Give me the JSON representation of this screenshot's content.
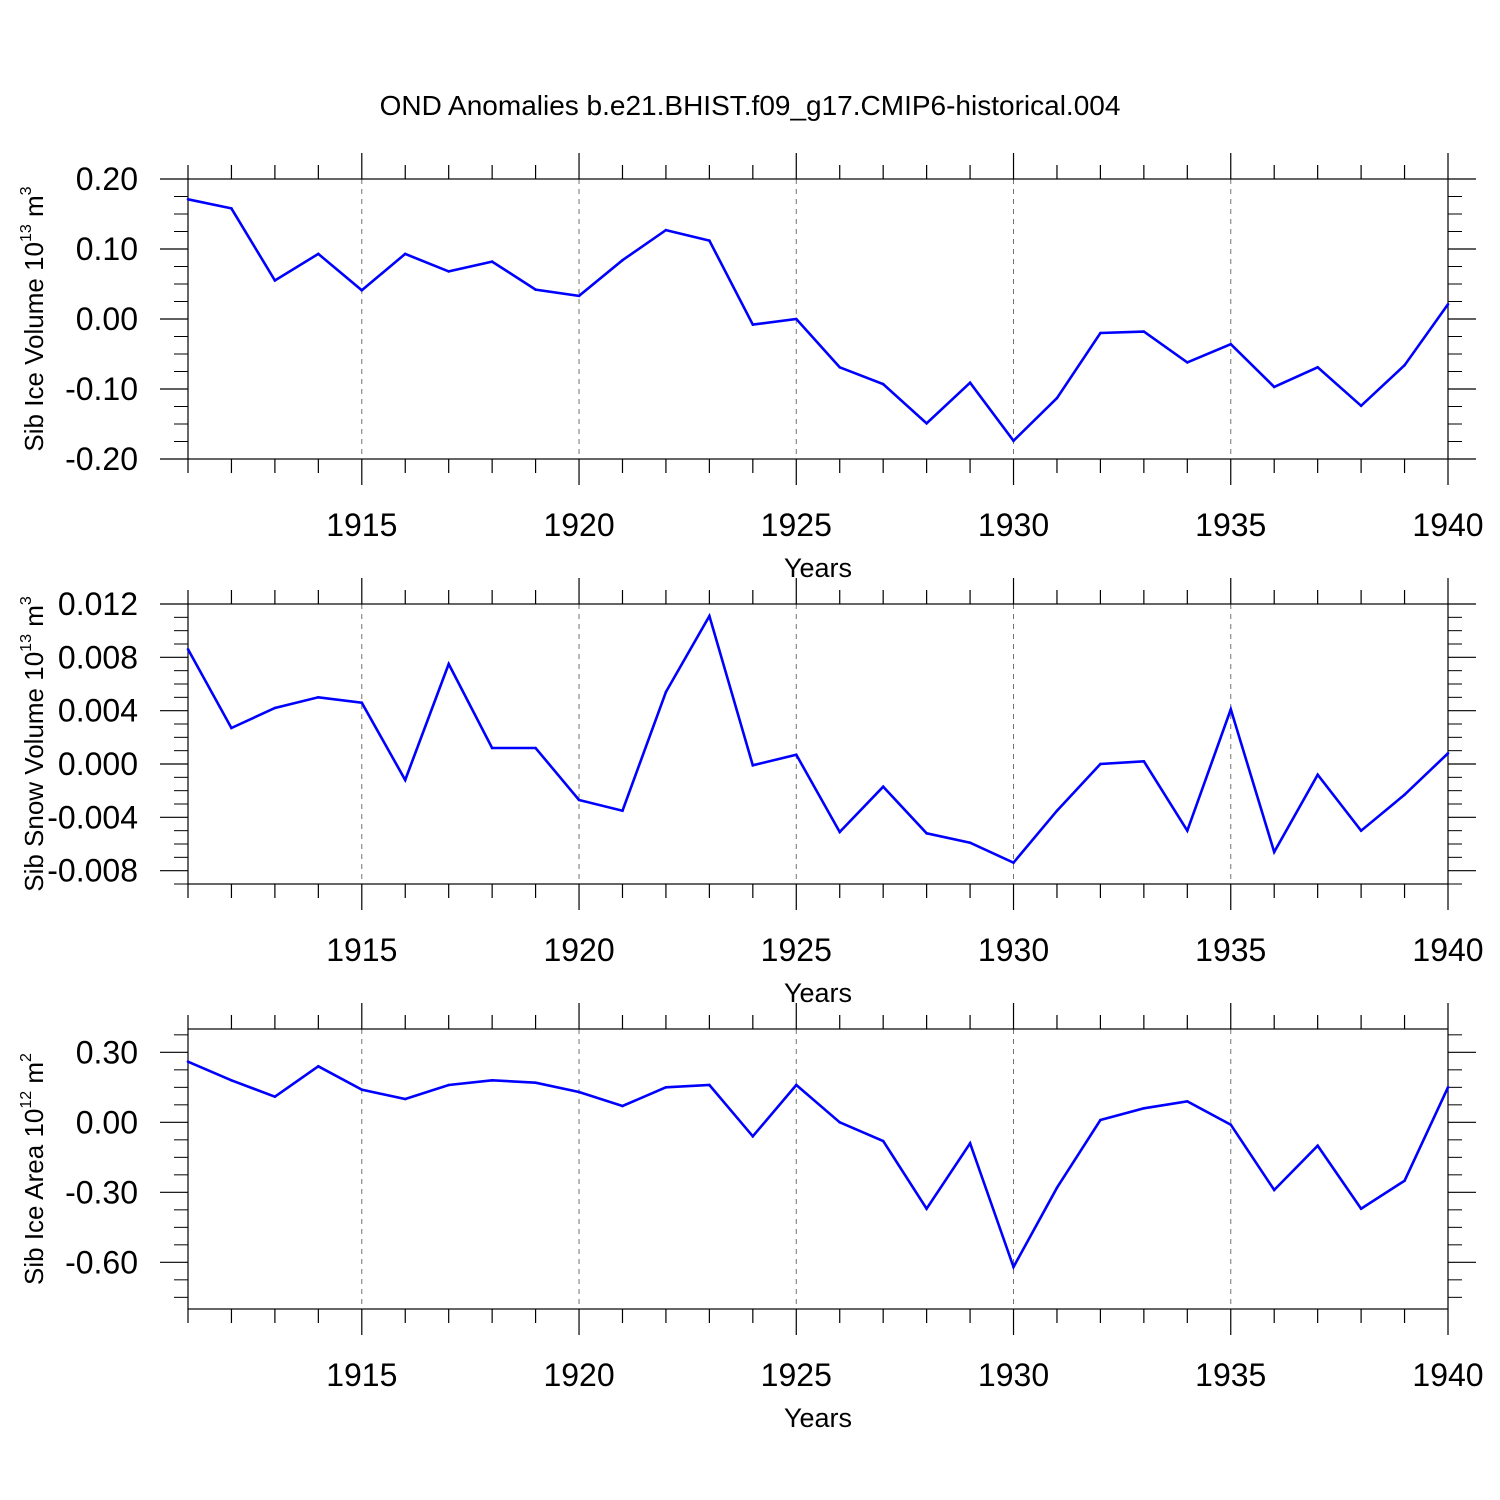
{
  "title": "OND Anomalies b.e21.BHIST.f09_g17.CMIP6-historical.004",
  "chart_data": [
    {
      "type": "line",
      "ylabel_main": "Sib Ice Volume 10",
      "ylabel_exp": "13",
      "ylabel_unit": " m",
      "ylabel_unit_exp": "3",
      "xlabel": "Years",
      "xlim": [
        1911,
        1940
      ],
      "ylim": [
        -0.2,
        0.2
      ],
      "yticks": [
        -0.2,
        -0.1,
        0.0,
        0.1,
        0.2
      ],
      "yticklabels": [
        "-0.20",
        "-0.10",
        "0.00",
        "0.10",
        "0.20"
      ],
      "xticks": [
        1915,
        1920,
        1925,
        1930,
        1935,
        1940
      ],
      "xticklabels": [
        "1915",
        "1920",
        "1925",
        "1930",
        "1935",
        "1940"
      ],
      "grid": "vertical dashed at labeled years",
      "color": "#0000ff",
      "x": [
        1911,
        1912,
        1913,
        1914,
        1915,
        1916,
        1917,
        1918,
        1919,
        1920,
        1921,
        1922,
        1923,
        1924,
        1925,
        1926,
        1927,
        1928,
        1929,
        1930,
        1931,
        1932,
        1933,
        1934,
        1935,
        1936,
        1937,
        1938,
        1939,
        1940
      ],
      "values": [
        0.171,
        0.158,
        0.055,
        0.093,
        0.041,
        0.093,
        0.068,
        0.082,
        0.042,
        0.033,
        0.084,
        0.127,
        0.112,
        -0.008,
        0.0,
        -0.069,
        -0.093,
        -0.149,
        -0.091,
        -0.174,
        -0.113,
        -0.02,
        -0.018,
        -0.062,
        -0.036,
        -0.097,
        -0.069,
        -0.124,
        -0.066,
        0.021
      ]
    },
    {
      "type": "line",
      "ylabel_main": "Sib Snow Volume 10",
      "ylabel_exp": "13",
      "ylabel_unit": " m",
      "ylabel_unit_exp": "3",
      "xlabel": "Years",
      "xlim": [
        1911,
        1940
      ],
      "ylim": [
        -0.009,
        0.012
      ],
      "yticks": [
        -0.008,
        -0.004,
        0.0,
        0.004,
        0.008,
        0.012
      ],
      "yticklabels": [
        "-0.008",
        "-0.004",
        "0.000",
        "0.004",
        "0.008",
        "0.012"
      ],
      "xticks": [
        1915,
        1920,
        1925,
        1930,
        1935,
        1940
      ],
      "xticklabels": [
        "1915",
        "1920",
        "1925",
        "1930",
        "1935",
        "1940"
      ],
      "grid": "vertical dashed at labeled years",
      "color": "#0000ff",
      "x": [
        1911,
        1912,
        1913,
        1914,
        1915,
        1916,
        1917,
        1918,
        1919,
        1920,
        1921,
        1922,
        1923,
        1924,
        1925,
        1926,
        1927,
        1928,
        1929,
        1930,
        1931,
        1932,
        1933,
        1934,
        1935,
        1936,
        1937,
        1938,
        1939,
        1940
      ],
      "values": [
        0.0086,
        0.0027,
        0.0042,
        0.005,
        0.0046,
        -0.0012,
        0.0075,
        0.0012,
        0.0012,
        -0.0027,
        -0.0035,
        0.0054,
        0.0111,
        -0.0001,
        0.0007,
        -0.0051,
        -0.0017,
        -0.0052,
        -0.0059,
        -0.0074,
        -0.0035,
        0.0,
        0.0002,
        -0.005,
        0.0041,
        -0.0066,
        -0.0008,
        -0.005,
        -0.0023,
        0.0008
      ]
    },
    {
      "type": "line",
      "ylabel_main": "Sib Ice Area 10",
      "ylabel_exp": "12",
      "ylabel_unit": " m",
      "ylabel_unit_exp": "2",
      "xlabel": "Years",
      "xlim": [
        1911,
        1940
      ],
      "ylim": [
        -0.8,
        0.4
      ],
      "yticks": [
        -0.6,
        -0.3,
        0.0,
        0.3
      ],
      "yticklabels": [
        "-0.60",
        "-0.30",
        "0.00",
        "0.30"
      ],
      "xticks": [
        1915,
        1920,
        1925,
        1930,
        1935,
        1940
      ],
      "xticklabels": [
        "1915",
        "1920",
        "1925",
        "1930",
        "1935",
        "1940"
      ],
      "grid": "vertical dashed at labeled years",
      "color": "#0000ff",
      "x": [
        1911,
        1912,
        1913,
        1914,
        1915,
        1916,
        1917,
        1918,
        1919,
        1920,
        1921,
        1922,
        1923,
        1924,
        1925,
        1926,
        1927,
        1928,
        1929,
        1930,
        1931,
        1932,
        1933,
        1934,
        1935,
        1936,
        1937,
        1938,
        1939,
        1940
      ],
      "values": [
        0.26,
        0.18,
        0.11,
        0.24,
        0.14,
        0.1,
        0.16,
        0.18,
        0.17,
        0.13,
        0.07,
        0.15,
        0.16,
        -0.06,
        0.16,
        0.0,
        -0.08,
        -0.37,
        -0.09,
        -0.62,
        -0.28,
        0.01,
        0.06,
        0.09,
        -0.01,
        -0.29,
        -0.1,
        -0.37,
        -0.25,
        0.15
      ]
    }
  ]
}
